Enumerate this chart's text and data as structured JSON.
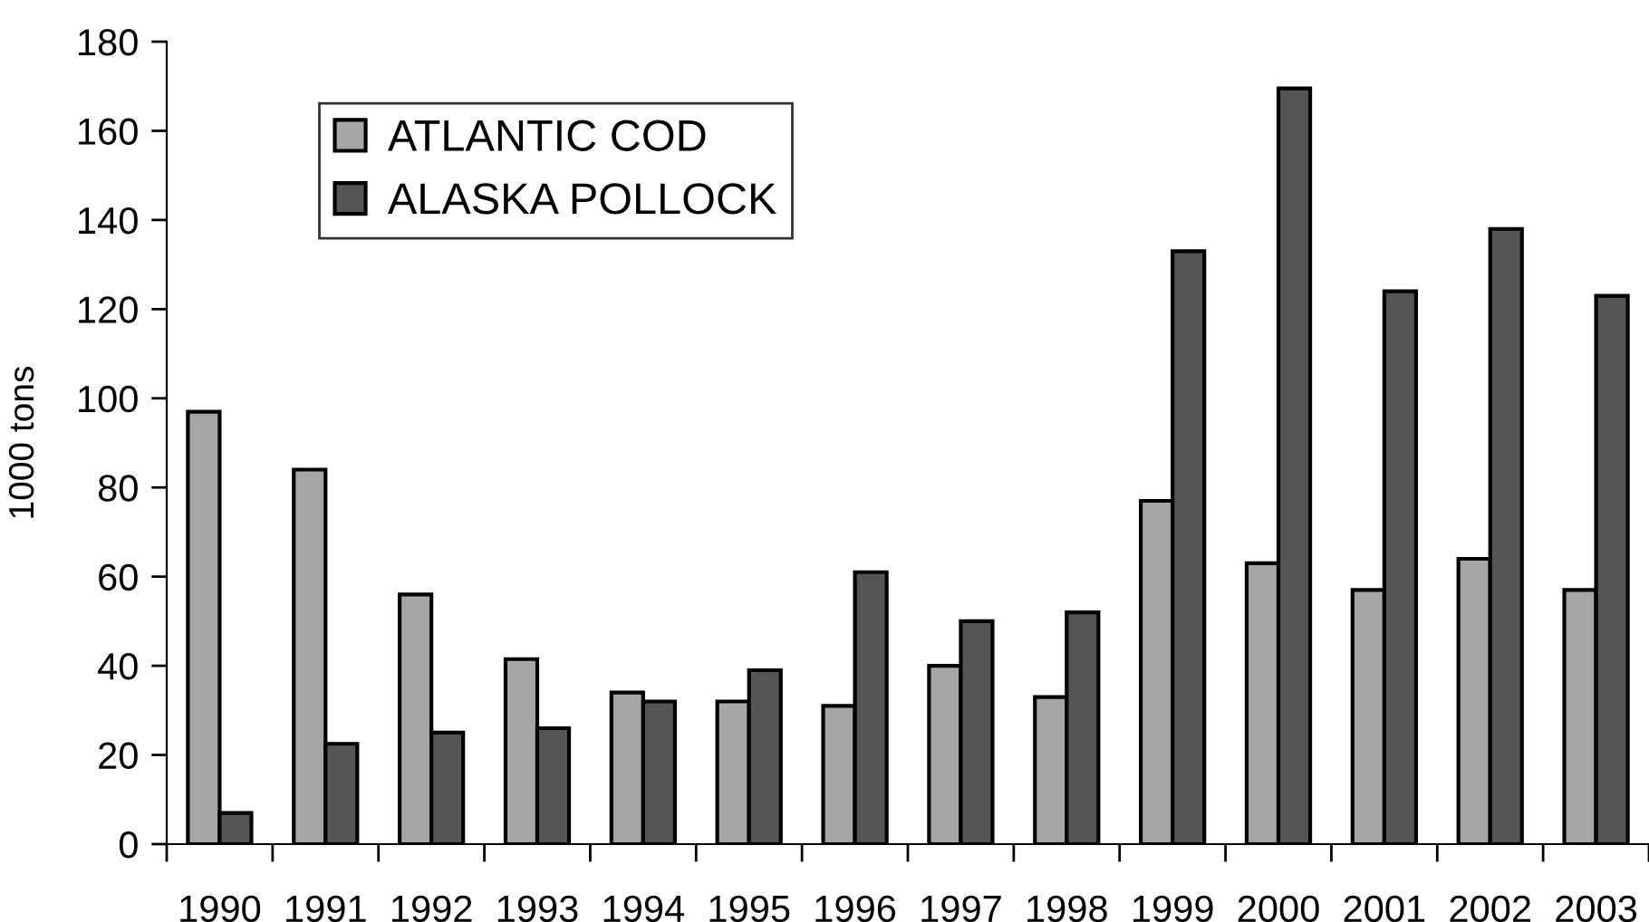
{
  "chart_data": {
    "type": "bar",
    "ylabel": "1000 tons",
    "categories": [
      "1990",
      "1991",
      "1992",
      "1993",
      "1994",
      "1995",
      "1996",
      "1997",
      "1998",
      "1999",
      "2000",
      "2001",
      "2002",
      "2003"
    ],
    "series": [
      {
        "name": "ATLANTIC COD",
        "color": "#a6a6a6",
        "values": [
          97,
          84,
          56,
          41.5,
          34,
          32,
          31,
          40,
          33,
          77,
          63,
          57,
          64,
          57
        ]
      },
      {
        "name": "ALASKA POLLOCK",
        "color": "#555555",
        "values": [
          7,
          22.5,
          25,
          26,
          32,
          39,
          61,
          50,
          52,
          133,
          169.5,
          124,
          138,
          123
        ]
      }
    ],
    "ylim": [
      0,
      180
    ],
    "yticks": [
      0,
      20,
      40,
      60,
      80,
      100,
      120,
      140,
      160,
      180
    ],
    "grid": false,
    "legend": "top left"
  }
}
